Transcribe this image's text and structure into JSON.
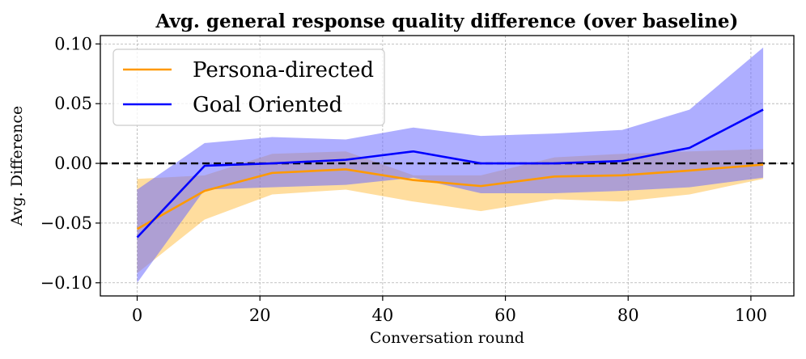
{
  "chart_data": {
    "type": "line",
    "title": "Avg. general response quality difference (over baseline)",
    "xlabel": "Conversation round",
    "ylabel": "Avg. Difference",
    "xlim": [
      -6,
      107
    ],
    "ylim": [
      -0.111,
      0.107
    ],
    "xticks": [
      0,
      20,
      40,
      60,
      80,
      100
    ],
    "xtick_labels": [
      "0",
      "20",
      "40",
      "60",
      "80",
      "100"
    ],
    "yticks": [
      -0.1,
      -0.05,
      0.0,
      0.05,
      0.1
    ],
    "ytick_labels": [
      "−0.10",
      "−0.05",
      "0.00",
      "0.05",
      "0.10"
    ],
    "x": [
      0,
      11,
      22,
      34,
      45,
      56,
      68,
      79,
      90,
      102
    ],
    "reference_line": {
      "y": 0,
      "style": "dashed",
      "color": "#000000"
    },
    "legend_position": "top-left",
    "series": [
      {
        "name": "Persona-directed",
        "color": "#ff9900",
        "fill_color": "#ffa500",
        "values": [
          -0.055,
          -0.023,
          -0.008,
          -0.005,
          -0.014,
          -0.019,
          -0.011,
          -0.01,
          -0.006,
          -0.001
        ],
        "upper": [
          -0.013,
          -0.01,
          0.008,
          0.01,
          -0.01,
          -0.01,
          0.005,
          0.008,
          0.01,
          0.012
        ],
        "lower": [
          -0.092,
          -0.047,
          -0.026,
          -0.022,
          -0.032,
          -0.04,
          -0.03,
          -0.032,
          -0.026,
          -0.013
        ]
      },
      {
        "name": "Goal Oriented",
        "color": "#0000ff",
        "fill_color": "#6b6bff",
        "values": [
          -0.062,
          -0.002,
          0.0,
          0.003,
          0.01,
          0.0,
          0.0,
          0.002,
          0.013,
          0.045
        ],
        "upper": [
          -0.022,
          0.017,
          0.022,
          0.02,
          0.03,
          0.023,
          0.025,
          0.028,
          0.045,
          0.097
        ],
        "lower": [
          -0.1,
          -0.022,
          -0.02,
          -0.018,
          -0.012,
          -0.025,
          -0.025,
          -0.023,
          -0.02,
          -0.012
        ]
      }
    ]
  }
}
